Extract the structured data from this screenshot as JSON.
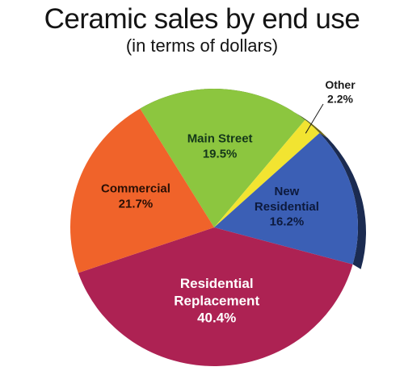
{
  "chart_data": {
    "type": "pie",
    "title": "Ceramic sales by end use",
    "subtitle": "(in terms of dollars)",
    "slices": [
      {
        "label": "Main Street",
        "value": 19.5,
        "value_label": "19.5%",
        "color": "#8cc63f",
        "label_color": "#14371a"
      },
      {
        "label": "Other",
        "value": 2.2,
        "value_label": "2.2%",
        "color": "#f2e431",
        "label_color": "#1a1a1a"
      },
      {
        "label": "New Residential",
        "value": 16.2,
        "value_label": "16.2%",
        "color": "#3b5fb5",
        "label_color": "#0d1a3d"
      },
      {
        "label": "Residential Replacement",
        "value": 40.4,
        "value_label": "40.4%",
        "color": "#ad2253",
        "label_color": "#ffffff"
      },
      {
        "label": "Commercial",
        "value": 21.7,
        "value_label": "21.7%",
        "color": "#f0632a",
        "label_color": "#2a0f05"
      }
    ]
  }
}
